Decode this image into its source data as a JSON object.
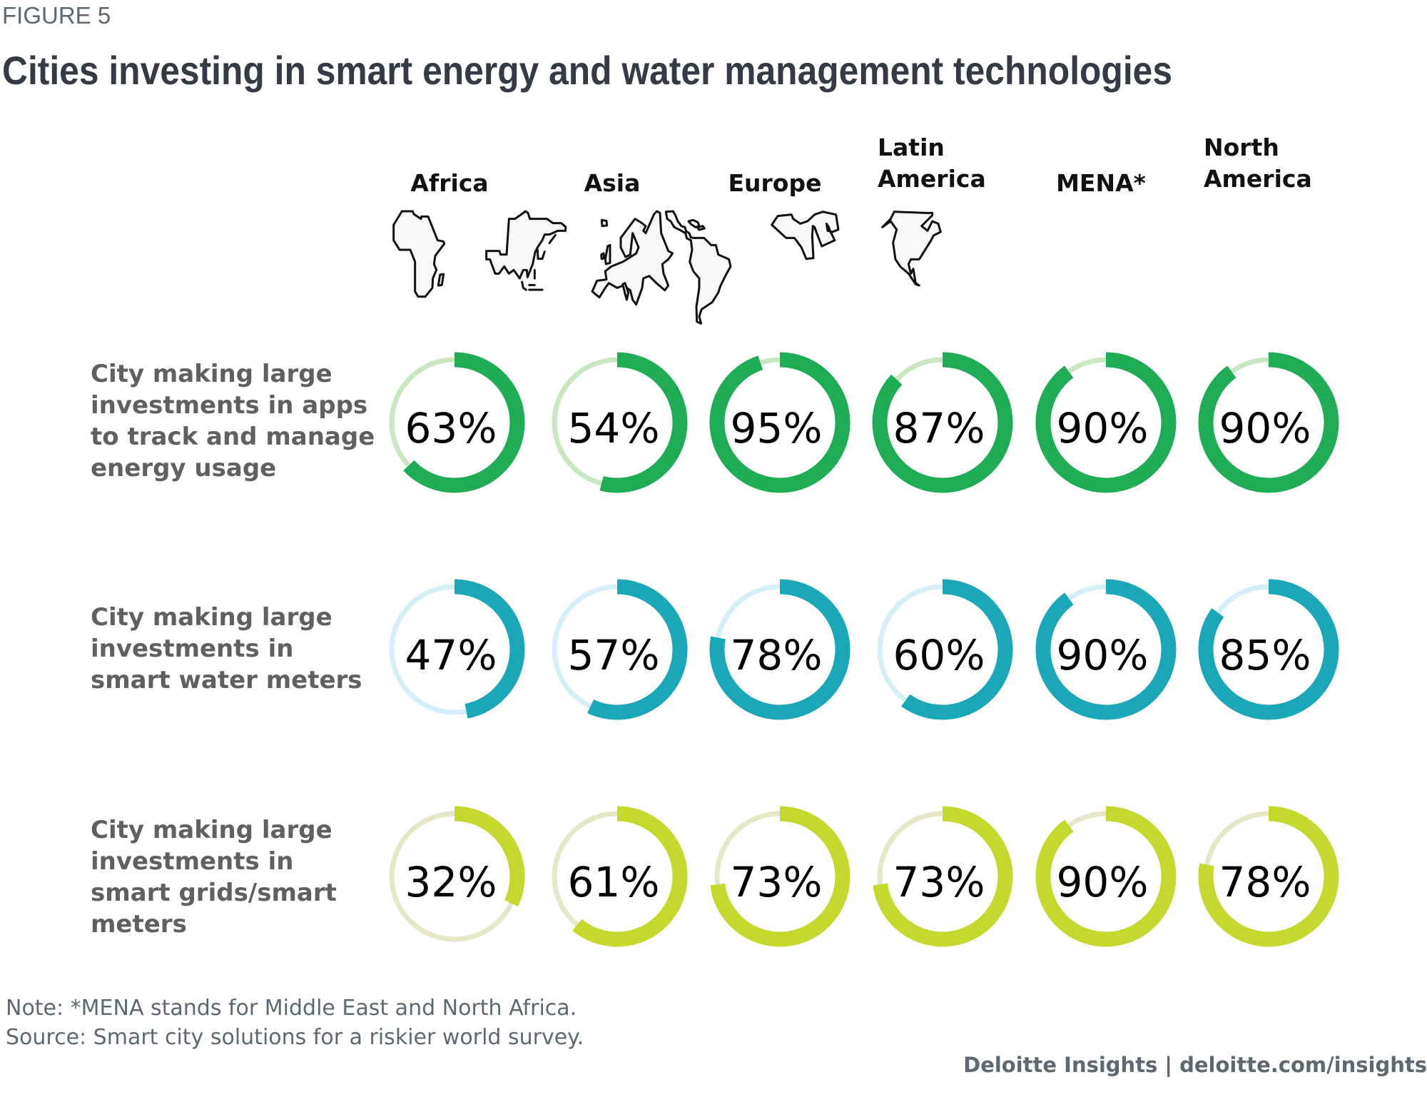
{
  "figure_label": "FIGURE 5",
  "title": "Cities investing in smart energy and water management technologies",
  "chart_data": {
    "type": "donut-grid",
    "title": "Cities investing in smart energy and water management technologies",
    "unit": "%",
    "categories": [
      "Africa",
      "Asia",
      "Europe",
      "Latin America",
      "MENA*",
      "North America"
    ],
    "category_header_lines": [
      [
        "Africa"
      ],
      [
        "Asia"
      ],
      [
        "Europe"
      ],
      [
        "Latin",
        "America"
      ],
      [
        "MENA*"
      ],
      [
        "North",
        "America"
      ]
    ],
    "category_icons": [
      "africa-map-icon",
      "asia-map-icon",
      "europe-map-icon",
      "latin-america-map-icon",
      "mena-map-icon",
      "north-america-map-icon"
    ],
    "series": [
      {
        "name": "City making large investments in apps to track and manage energy usage",
        "label_lines": [
          "City making large",
          "investments in apps",
          "to track and manage",
          "energy usage"
        ],
        "color": "#1ead55",
        "track_color": "#cbe6c2",
        "values": [
          63,
          54,
          95,
          87,
          90,
          90
        ]
      },
      {
        "name": "City making large investments in smart water meters",
        "label_lines": [
          "City making large",
          "investments in",
          "smart water meters"
        ],
        "color": "#1aa7b8",
        "track_color": "#d6eef8",
        "values": [
          47,
          57,
          78,
          60,
          90,
          85
        ]
      },
      {
        "name": "City making large investments in smart grids/smart meters",
        "label_lines": [
          "City making large",
          "investments in",
          "smart grids/smart",
          "meters"
        ],
        "color": "#c4d82e",
        "track_color": "#e6e7c8",
        "values": [
          32,
          61,
          73,
          73,
          90,
          78
        ]
      }
    ]
  },
  "notes": {
    "note": "Note: *MENA stands for Middle East and North Africa.",
    "source": "Source: Smart city solutions for a riskier world survey."
  },
  "footer": {
    "brand": "Deloitte Insights | deloitte.com/insights"
  }
}
